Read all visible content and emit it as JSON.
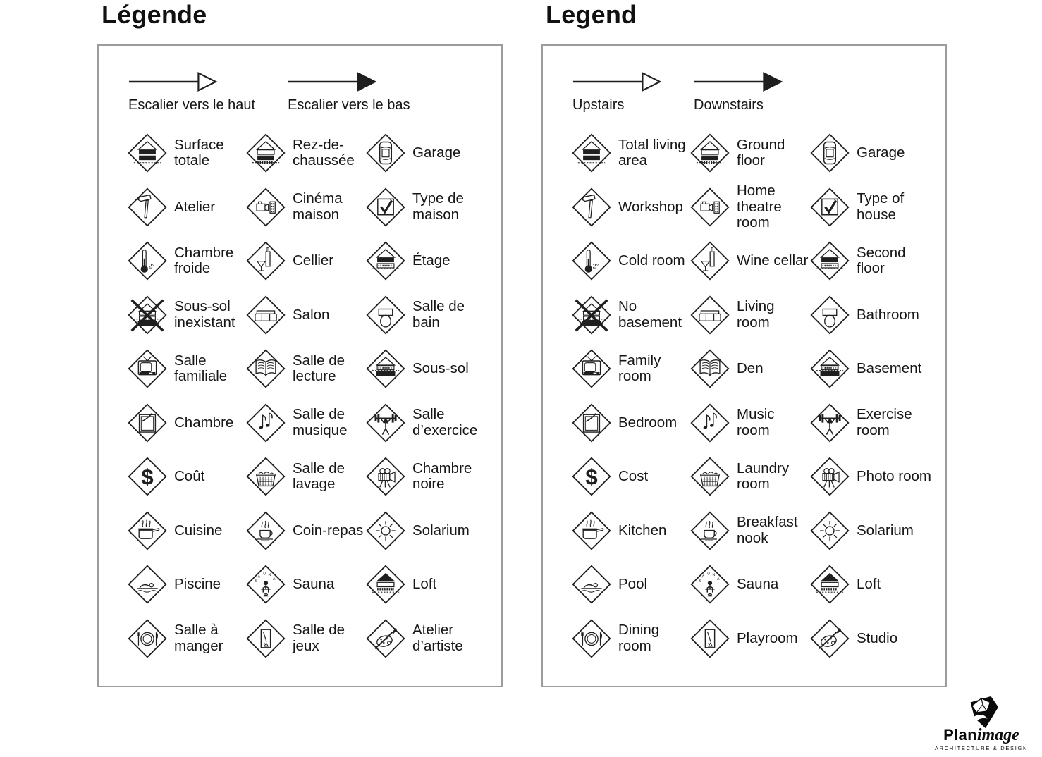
{
  "colors": {
    "ink": "#1f1f1f",
    "panel_border": "#9c9c9c",
    "background": "#ffffff"
  },
  "icon_text": {
    "cold_room_temp": "2°",
    "cost_symbol": "$",
    "sauna_letters": "SAUNA"
  },
  "panels": [
    {
      "id": "fr",
      "title": "Légende",
      "arrows": [
        {
          "icon": "stairs-up-arrow-icon",
          "head": "open",
          "label": "Escalier vers le haut"
        },
        {
          "icon": "stairs-down-arrow-icon",
          "head": "filled",
          "label": "Escalier vers le bas"
        }
      ],
      "items": [
        {
          "icon": "total-living-area-icon",
          "label": "Surface totale"
        },
        {
          "icon": "ground-floor-icon",
          "label": "Rez-de-chaussée"
        },
        {
          "icon": "garage-icon",
          "label": "Garage"
        },
        {
          "icon": "workshop-icon",
          "label": "Atelier"
        },
        {
          "icon": "home-theatre-icon",
          "label": "Cinéma maison"
        },
        {
          "icon": "type-of-house-icon",
          "label": "Type de maison"
        },
        {
          "icon": "cold-room-icon",
          "label": "Chambre froide"
        },
        {
          "icon": "wine-cellar-icon",
          "label": "Cellier"
        },
        {
          "icon": "second-floor-icon",
          "label": "Étage"
        },
        {
          "icon": "no-basement-icon",
          "label": "Sous-sol inexistant"
        },
        {
          "icon": "living-room-icon",
          "label": "Salon"
        },
        {
          "icon": "bathroom-icon",
          "label": "Salle de bain"
        },
        {
          "icon": "family-room-icon",
          "label": "Salle familiale"
        },
        {
          "icon": "den-icon",
          "label": "Salle de lecture"
        },
        {
          "icon": "basement-icon",
          "label": "Sous-sol"
        },
        {
          "icon": "bedroom-icon",
          "label": "Chambre"
        },
        {
          "icon": "music-room-icon",
          "label": "Salle de musique"
        },
        {
          "icon": "exercise-room-icon",
          "label": "Salle d’exercice"
        },
        {
          "icon": "cost-icon",
          "label": "Coût"
        },
        {
          "icon": "laundry-room-icon",
          "label": "Salle de lavage"
        },
        {
          "icon": "photo-room-icon",
          "label": "Chambre noire"
        },
        {
          "icon": "kitchen-icon",
          "label": "Cuisine"
        },
        {
          "icon": "breakfast-nook-icon",
          "label": "Coin-repas"
        },
        {
          "icon": "solarium-icon",
          "label": "Solarium"
        },
        {
          "icon": "pool-icon",
          "label": "Piscine"
        },
        {
          "icon": "sauna-icon",
          "label": "Sauna"
        },
        {
          "icon": "loft-icon",
          "label": "Loft"
        },
        {
          "icon": "dining-room-icon",
          "label": "Salle à manger"
        },
        {
          "icon": "playroom-icon",
          "label": "Salle de jeux"
        },
        {
          "icon": "studio-icon",
          "label": "Atelier d’artiste"
        }
      ]
    },
    {
      "id": "en",
      "title": "Legend",
      "arrows": [
        {
          "icon": "stairs-up-arrow-icon",
          "head": "open",
          "label": "Upstairs"
        },
        {
          "icon": "stairs-down-arrow-icon",
          "head": "filled",
          "label": "Downstairs"
        }
      ],
      "items": [
        {
          "icon": "total-living-area-icon",
          "label": "Total living area"
        },
        {
          "icon": "ground-floor-icon",
          "label": "Ground floor"
        },
        {
          "icon": "garage-icon",
          "label": "Garage"
        },
        {
          "icon": "workshop-icon",
          "label": "Workshop"
        },
        {
          "icon": "home-theatre-icon",
          "label": "Home theatre room"
        },
        {
          "icon": "type-of-house-icon",
          "label": "Type of house"
        },
        {
          "icon": "cold-room-icon",
          "label": "Cold room"
        },
        {
          "icon": "wine-cellar-icon",
          "label": "Wine cellar"
        },
        {
          "icon": "second-floor-icon",
          "label": "Second floor"
        },
        {
          "icon": "no-basement-icon",
          "label": "No basement"
        },
        {
          "icon": "living-room-icon",
          "label": "Living room"
        },
        {
          "icon": "bathroom-icon",
          "label": "Bathroom"
        },
        {
          "icon": "family-room-icon",
          "label": "Family room"
        },
        {
          "icon": "den-icon",
          "label": "Den"
        },
        {
          "icon": "basement-icon",
          "label": "Basement"
        },
        {
          "icon": "bedroom-icon",
          "label": "Bedroom"
        },
        {
          "icon": "music-room-icon",
          "label": "Music room"
        },
        {
          "icon": "exercise-room-icon",
          "label": "Exercise room"
        },
        {
          "icon": "cost-icon",
          "label": "Cost"
        },
        {
          "icon": "laundry-room-icon",
          "label": "Laundry room"
        },
        {
          "icon": "photo-room-icon",
          "label": "Photo room"
        },
        {
          "icon": "kitchen-icon",
          "label": "Kitchen"
        },
        {
          "icon": "breakfast-nook-icon",
          "label": "Breakfast nook"
        },
        {
          "icon": "solarium-icon",
          "label": "Solarium"
        },
        {
          "icon": "pool-icon",
          "label": "Pool"
        },
        {
          "icon": "sauna-icon",
          "label": "Sauna"
        },
        {
          "icon": "loft-icon",
          "label": "Loft"
        },
        {
          "icon": "dining-room-icon",
          "label": "Dining room"
        },
        {
          "icon": "playroom-icon",
          "label": "Playroom"
        },
        {
          "icon": "studio-icon",
          "label": "Studio"
        }
      ]
    }
  ],
  "logo": {
    "brand_bold": "Plan",
    "brand_script": "image",
    "tagline": "ARCHITECTURE & DESIGN"
  }
}
